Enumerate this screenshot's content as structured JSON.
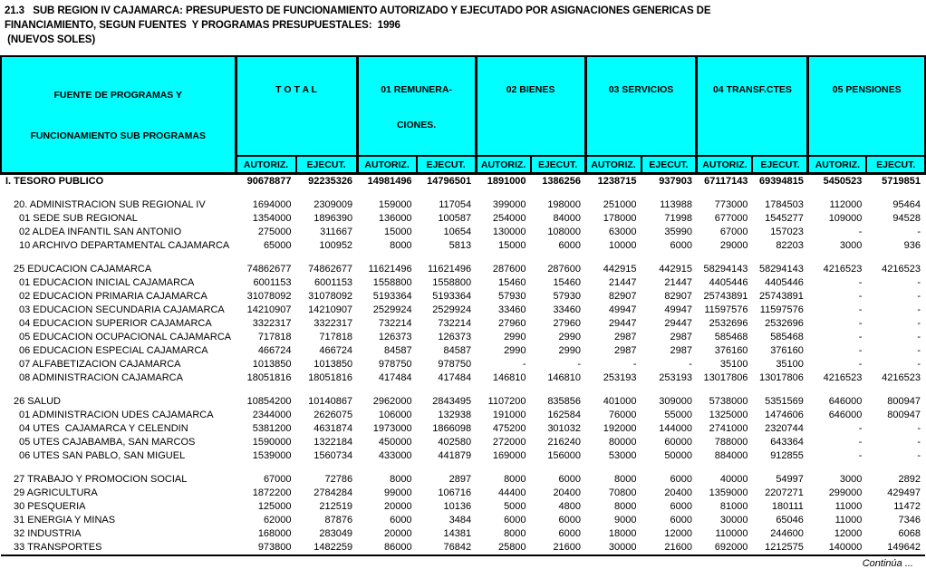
{
  "title": {
    "line1": "21.3   SUB REGION IV CAJAMARCA: PRESUPUESTO DE FUNCIONAMIENTO AUTORIZADO Y EJECUTADO POR ASIGNACIONES GENERICAS DE",
    "line2": "FINANCIAMIENTO, SEGUN FUENTES  Y PROGRAMAS PRESUPUESTALES:  1996",
    "line3": " (NUEVOS SOLES)"
  },
  "colors": {
    "header_bg": "#00FFFF",
    "text": "#000000"
  },
  "header": {
    "row_label_line1": "FUENTE DE PROGRAMAS Y",
    "row_label_line2": "FUNCIONAMIENTO SUB PROGRAMAS",
    "groups": [
      {
        "line1": "T O T A L",
        "line2": ""
      },
      {
        "line1": "01 REMUNERA-",
        "line2": "CIONES."
      },
      {
        "line1": "02 BIENES",
        "line2": ""
      },
      {
        "line1": "03 SERVICIOS",
        "line2": ""
      },
      {
        "line1": "04 TRANSF.CTES",
        "line2": ""
      },
      {
        "line1": "05 PENSIONES",
        "line2": ""
      }
    ],
    "sub_autoriz": "AUTORIZ.",
    "sub_ejecut": "EJECUT."
  },
  "rows": [
    {
      "type": "section",
      "label": "I. TESORO PUBLICO",
      "values": [
        "90678877",
        "92235326",
        "14981496",
        "14796501",
        "1891000",
        "1386256",
        "1238715",
        "937903",
        "67117143",
        "69394815",
        "5450523",
        "5719851"
      ]
    },
    {
      "type": "blank"
    },
    {
      "type": "group",
      "label": "20. ADMINISTRACION SUB REGIONAL IV",
      "values": [
        "1694000",
        "2309009",
        "159000",
        "117054",
        "399000",
        "198000",
        "251000",
        "113988",
        "773000",
        "1784503",
        "112000",
        "95464"
      ]
    },
    {
      "type": "item",
      "label": "01 SEDE SUB REGIONAL",
      "values": [
        "1354000",
        "1896390",
        "136000",
        "100587",
        "254000",
        "84000",
        "178000",
        "71998",
        "677000",
        "1545277",
        "109000",
        "94528"
      ]
    },
    {
      "type": "item",
      "label": "02 ALDEA INFANTIL SAN ANTONIO",
      "values": [
        "275000",
        "311667",
        "15000",
        "10654",
        "130000",
        "108000",
        "63000",
        "35990",
        "67000",
        "157023",
        "-",
        "-"
      ]
    },
    {
      "type": "item",
      "label": "10 ARCHIVO DEPARTAMENTAL CAJAMARCA",
      "values": [
        "65000",
        "100952",
        "8000",
        "5813",
        "15000",
        "6000",
        "10000",
        "6000",
        "29000",
        "82203",
        "3000",
        "936"
      ]
    },
    {
      "type": "blank"
    },
    {
      "type": "group",
      "label": "25 EDUCACION CAJAMARCA",
      "values": [
        "74862677",
        "74862677",
        "11621496",
        "11621496",
        "287600",
        "287600",
        "442915",
        "442915",
        "58294143",
        "58294143",
        "4216523",
        "4216523"
      ]
    },
    {
      "type": "item",
      "label": "01 EDUCACION INICIAL CAJAMARCA",
      "values": [
        "6001153",
        "6001153",
        "1558800",
        "1558800",
        "15460",
        "15460",
        "21447",
        "21447",
        "4405446",
        "4405446",
        "-",
        "-"
      ]
    },
    {
      "type": "item",
      "label": "02 EDUCACION PRIMARIA CAJAMARCA",
      "values": [
        "31078092",
        "31078092",
        "5193364",
        "5193364",
        "57930",
        "57930",
        "82907",
        "82907",
        "25743891",
        "25743891",
        "-",
        "-"
      ]
    },
    {
      "type": "item",
      "label": "03 EDUCACION SECUNDARIA CAJAMARCA",
      "values": [
        "14210907",
        "14210907",
        "2529924",
        "2529924",
        "33460",
        "33460",
        "49947",
        "49947",
        "11597576",
        "11597576",
        "-",
        "-"
      ]
    },
    {
      "type": "item",
      "label": "04 EDUCACION SUPERIOR CAJAMARCA",
      "values": [
        "3322317",
        "3322317",
        "732214",
        "732214",
        "27960",
        "27960",
        "29447",
        "29447",
        "2532696",
        "2532696",
        "-",
        "-"
      ]
    },
    {
      "type": "item",
      "label": "05 EDUCACION OCUPACIONAL CAJAMARCA",
      "values": [
        "717818",
        "717818",
        "126373",
        "126373",
        "2990",
        "2990",
        "2987",
        "2987",
        "585468",
        "585468",
        "-",
        "-"
      ]
    },
    {
      "type": "item",
      "label": "06 EDUCACION ESPECIAL CAJAMARCA",
      "values": [
        "466724",
        "466724",
        "84587",
        "84587",
        "2990",
        "2990",
        "2987",
        "2987",
        "376160",
        "376160",
        "-",
        "-"
      ]
    },
    {
      "type": "item",
      "label": "07 ALFABETIZACION CAJAMARCA",
      "values": [
        "1013850",
        "1013850",
        "978750",
        "978750",
        "-",
        "-",
        "-",
        "-",
        "35100",
        "35100",
        "-",
        "-"
      ]
    },
    {
      "type": "item",
      "label": "08 ADMINISTRACION CAJAMARCA",
      "values": [
        "18051816",
        "18051816",
        "417484",
        "417484",
        "146810",
        "146810",
        "253193",
        "253193",
        "13017806",
        "13017806",
        "4216523",
        "4216523"
      ]
    },
    {
      "type": "blank"
    },
    {
      "type": "group",
      "label": "26 SALUD",
      "values": [
        "10854200",
        "10140867",
        "2962000",
        "2843495",
        "1107200",
        "835856",
        "401000",
        "309000",
        "5738000",
        "5351569",
        "646000",
        "800947"
      ]
    },
    {
      "type": "item",
      "label": "01 ADMINISTRACION UDES CAJAMARCA",
      "values": [
        "2344000",
        "2626075",
        "106000",
        "132938",
        "191000",
        "162584",
        "76000",
        "55000",
        "1325000",
        "1474606",
        "646000",
        "800947"
      ]
    },
    {
      "type": "item",
      "label": "04 UTES  CAJAMARCA Y CELENDIN",
      "values": [
        "5381200",
        "4631874",
        "1973000",
        "1866098",
        "475200",
        "301032",
        "192000",
        "144000",
        "2741000",
        "2320744",
        "-",
        "-"
      ]
    },
    {
      "type": "item",
      "label": "05 UTES CAJABAMBA, SAN MARCOS",
      "values": [
        "1590000",
        "1322184",
        "450000",
        "402580",
        "272000",
        "216240",
        "80000",
        "60000",
        "788000",
        "643364",
        "-",
        "-"
      ]
    },
    {
      "type": "item",
      "label": "06 UTES SAN PABLO, SAN MIGUEL",
      "values": [
        "1539000",
        "1560734",
        "433000",
        "441879",
        "169000",
        "156000",
        "53000",
        "50000",
        "884000",
        "912855",
        "-",
        "-"
      ]
    },
    {
      "type": "blank"
    },
    {
      "type": "group",
      "label": "27 TRABAJO Y PROMOCION SOCIAL",
      "values": [
        "67000",
        "72786",
        "8000",
        "2897",
        "8000",
        "6000",
        "8000",
        "6000",
        "40000",
        "54997",
        "3000",
        "2892"
      ]
    },
    {
      "type": "group",
      "label": "29 AGRICULTURA",
      "values": [
        "1872200",
        "2784284",
        "99000",
        "106716",
        "44400",
        "20400",
        "70800",
        "20400",
        "1359000",
        "2207271",
        "299000",
        "429497"
      ]
    },
    {
      "type": "group",
      "label": "30 PESQUERIA",
      "values": [
        "125000",
        "212519",
        "20000",
        "10136",
        "5000",
        "4800",
        "8000",
        "6000",
        "81000",
        "180111",
        "11000",
        "11472"
      ]
    },
    {
      "type": "group",
      "label": "31 ENERGIA Y MINAS",
      "values": [
        "62000",
        "87876",
        "6000",
        "3484",
        "6000",
        "6000",
        "9000",
        "6000",
        "30000",
        "65046",
        "11000",
        "7346"
      ]
    },
    {
      "type": "group",
      "label": "32 INDUSTRIA",
      "values": [
        "168000",
        "283049",
        "20000",
        "14381",
        "8000",
        "6000",
        "18000",
        "12000",
        "110000",
        "244600",
        "12000",
        "6068"
      ]
    },
    {
      "type": "group",
      "label": "33 TRANSPORTES",
      "values": [
        "973800",
        "1482259",
        "86000",
        "76842",
        "25800",
        "21600",
        "30000",
        "21600",
        "692000",
        "1212575",
        "140000",
        "149642"
      ]
    }
  ],
  "footer": {
    "continua": "Continúa ..."
  }
}
